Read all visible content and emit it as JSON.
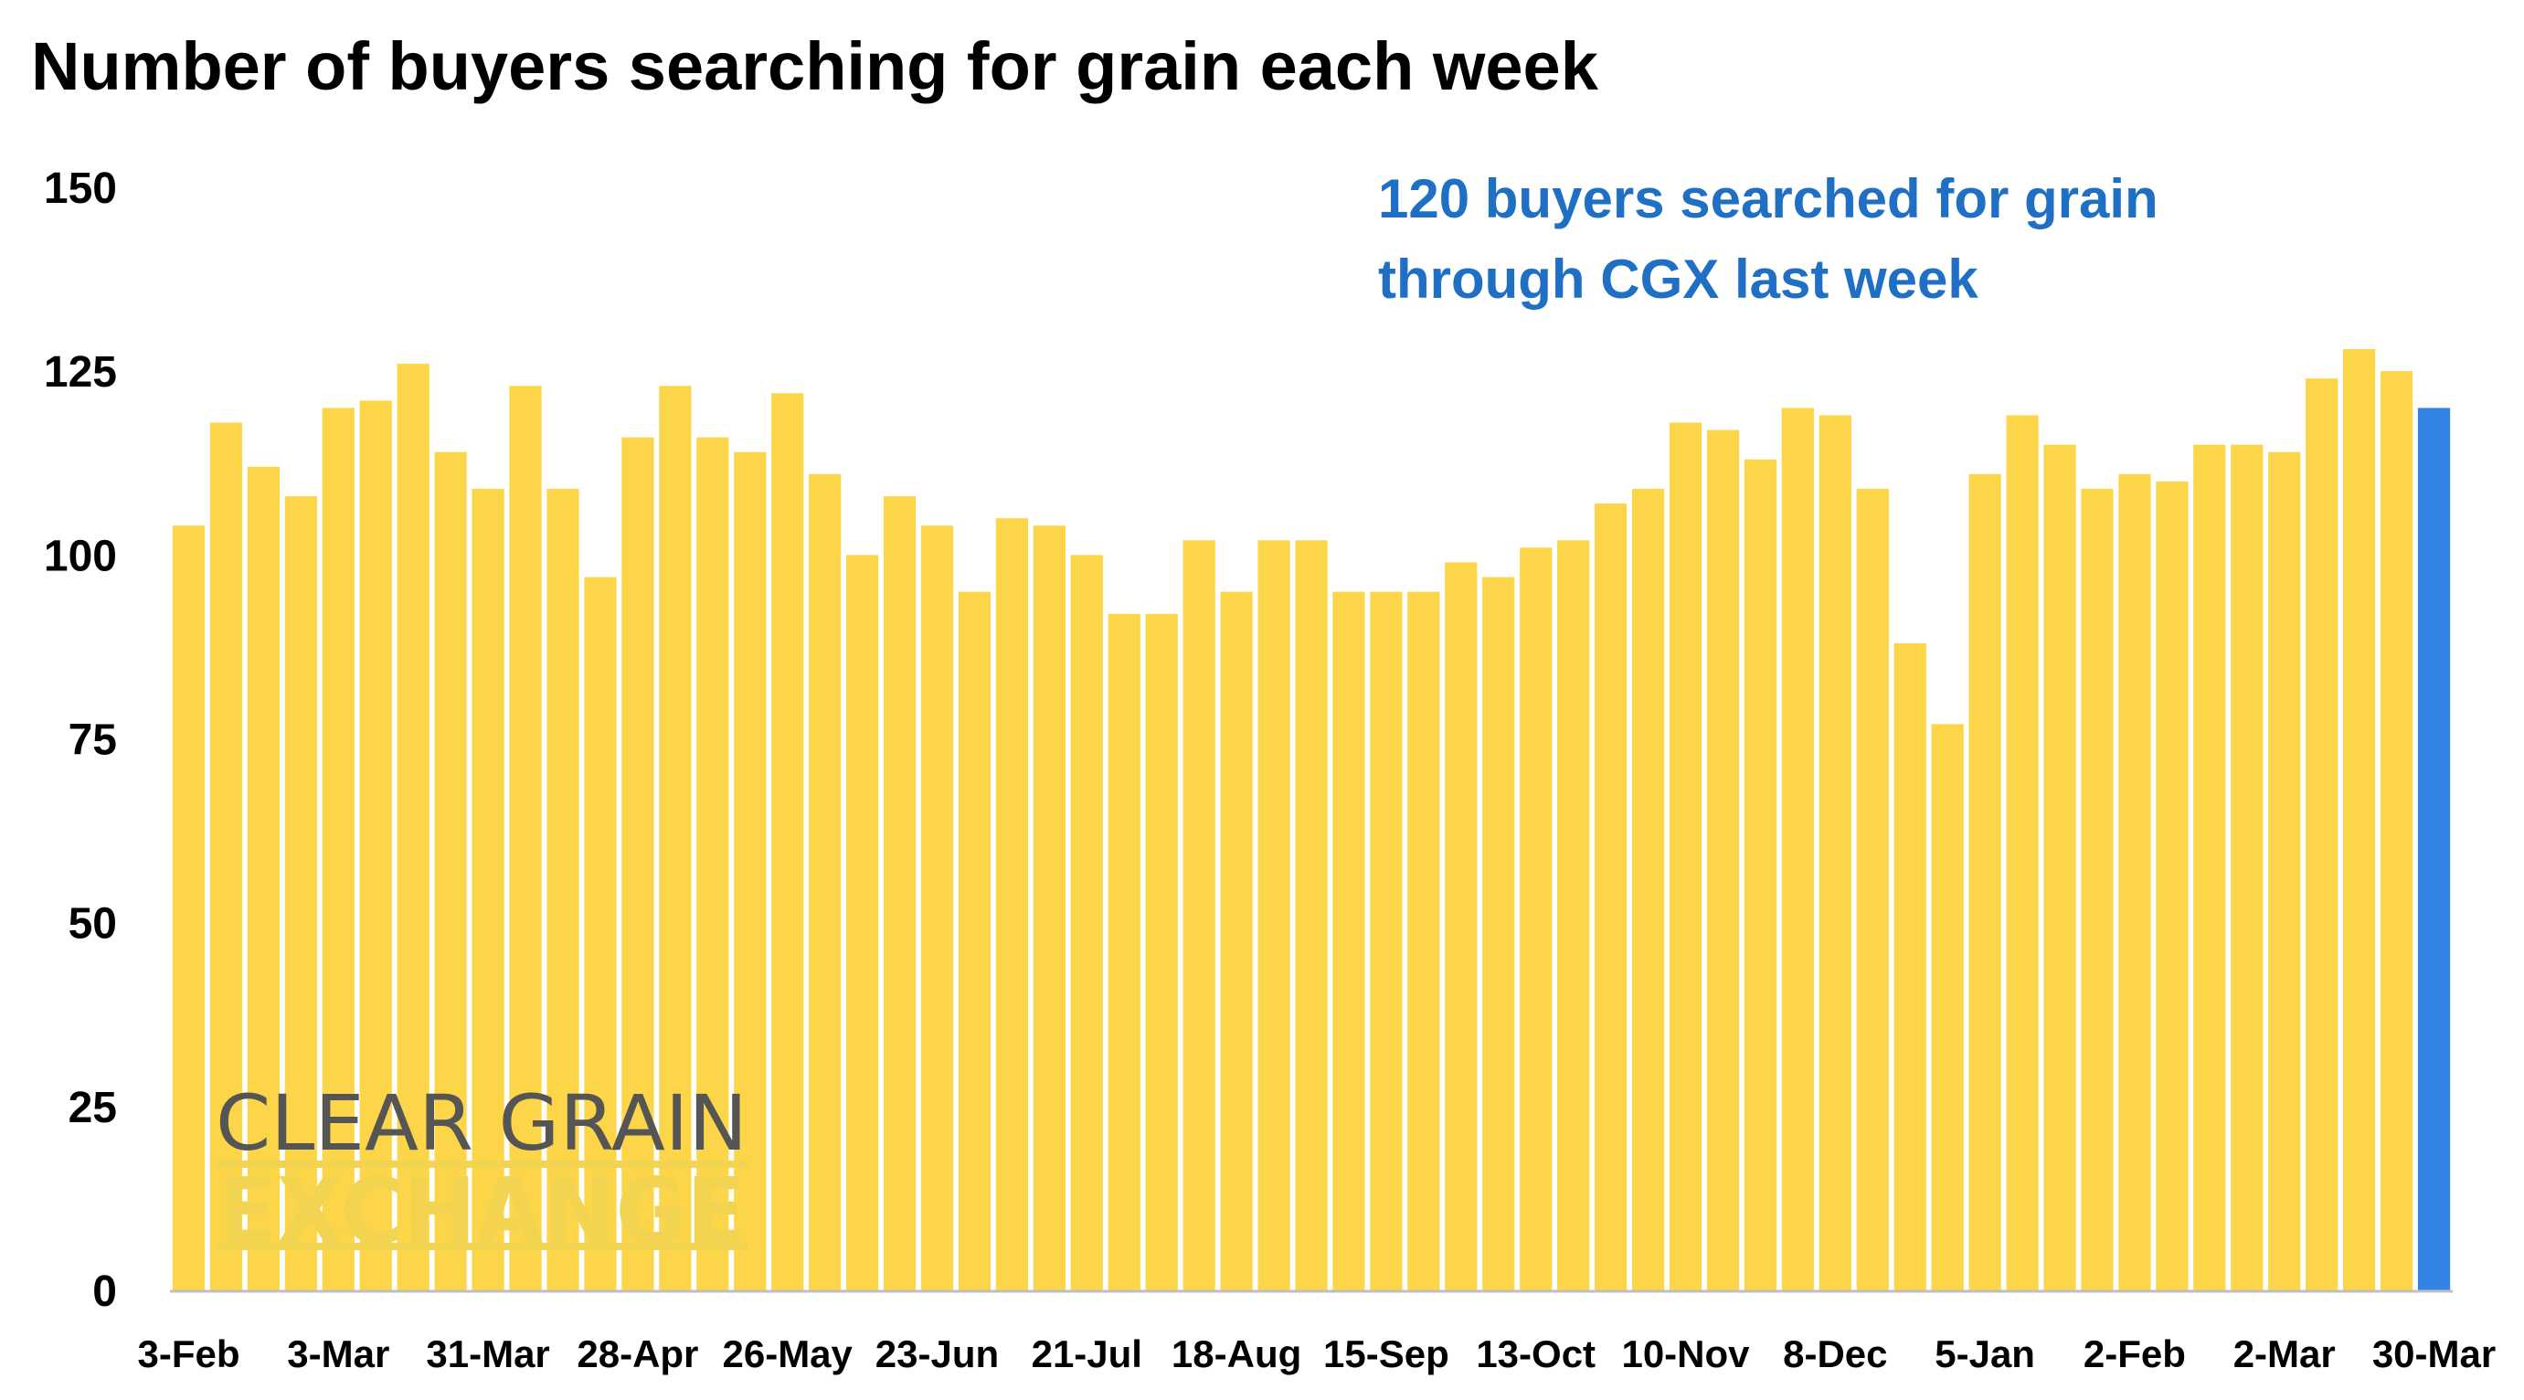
{
  "chart_data": {
    "type": "bar",
    "title": "Number of buyers searching for grain each week",
    "xlabel": "",
    "ylabel": "",
    "ylim": [
      0,
      150
    ],
    "yticks": [
      0,
      25,
      50,
      75,
      100,
      125,
      150
    ],
    "x_tick_labels": [
      "3-Feb",
      "3-Mar",
      "31-Mar",
      "28-Apr",
      "26-May",
      "23-Jun",
      "21-Jul",
      "18-Aug",
      "15-Sep",
      "13-Oct",
      "10-Nov",
      "8-Dec",
      "5-Jan",
      "2-Feb",
      "2-Mar",
      "30-Mar"
    ],
    "values": [
      104,
      118,
      112,
      108,
      120,
      121,
      126,
      114,
      109,
      123,
      109,
      97,
      116,
      123,
      116,
      114,
      122,
      111,
      100,
      108,
      104,
      95,
      105,
      104,
      100,
      92,
      92,
      102,
      95,
      102,
      102,
      95,
      95,
      95,
      99,
      97,
      101,
      102,
      107,
      109,
      118,
      117,
      113,
      120,
      119,
      109,
      88,
      77,
      111,
      119,
      115,
      109,
      111,
      110,
      115,
      115,
      114,
      124,
      128,
      125,
      120
    ],
    "highlight_index": 60,
    "grid": false,
    "colors": {
      "bar": "#FCD648",
      "highlight": "#3383E5",
      "axis": "#BFBFBF",
      "annotation": "#1F6FC5"
    },
    "annotation": {
      "line1": "120 buyers searched for grain",
      "line2": "through CGX last week"
    }
  },
  "logo": {
    "line1": "CLEAR GRAIN",
    "line2": "EXCHANGE",
    "color_line1": "#555555",
    "color_line2": "#F2D450"
  }
}
